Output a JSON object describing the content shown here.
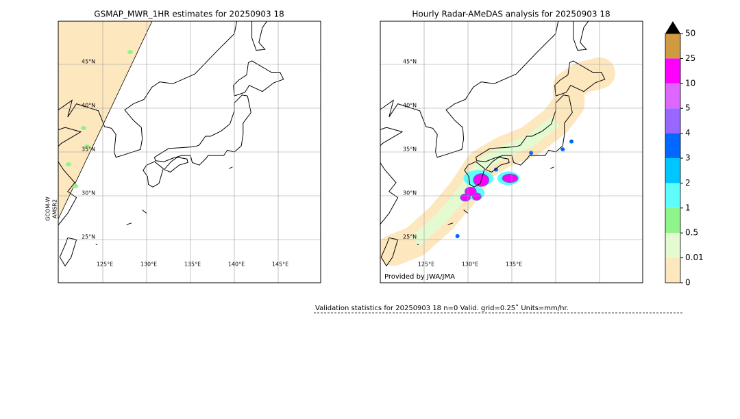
{
  "left_map": {
    "title": "GSMAP_MWR_1HR estimates for 20250903 18",
    "lat_labels": [
      "45°N",
      "40°N",
      "35°N",
      "30°N",
      "25°N"
    ],
    "lon_labels": [
      "125°E",
      "130°E",
      "135°E",
      "140°E",
      "145°E"
    ],
    "sensor_label": [
      "GCOM-W",
      "AMSR2"
    ]
  },
  "right_map": {
    "title": "Hourly Radar-AMeDAS analysis for 20250903 18",
    "lat_labels": [
      "45°N",
      "40°N",
      "35°N",
      "30°N",
      "25°N"
    ],
    "lon_labels": [
      "125°E",
      "130°E",
      "135°E"
    ],
    "credit": "Provided by JWA/JMA"
  },
  "colorbar": {
    "labels": [
      "0",
      "0.01",
      "0.5",
      "1",
      "2",
      "3",
      "4",
      "5",
      "10",
      "25",
      "50"
    ],
    "colors": [
      "#fde7bf",
      "#e4fbd2",
      "#8ff58a",
      "#5ffcfc",
      "#00c6ff",
      "#0068ff",
      "#9966ff",
      "#dd66ff",
      "#ff00ff",
      "#cf9a40"
    ]
  },
  "validation": "Validation statistics for 20250903 18  n=0 Valid. grid=0.25˚ Units=mm/hr."
}
